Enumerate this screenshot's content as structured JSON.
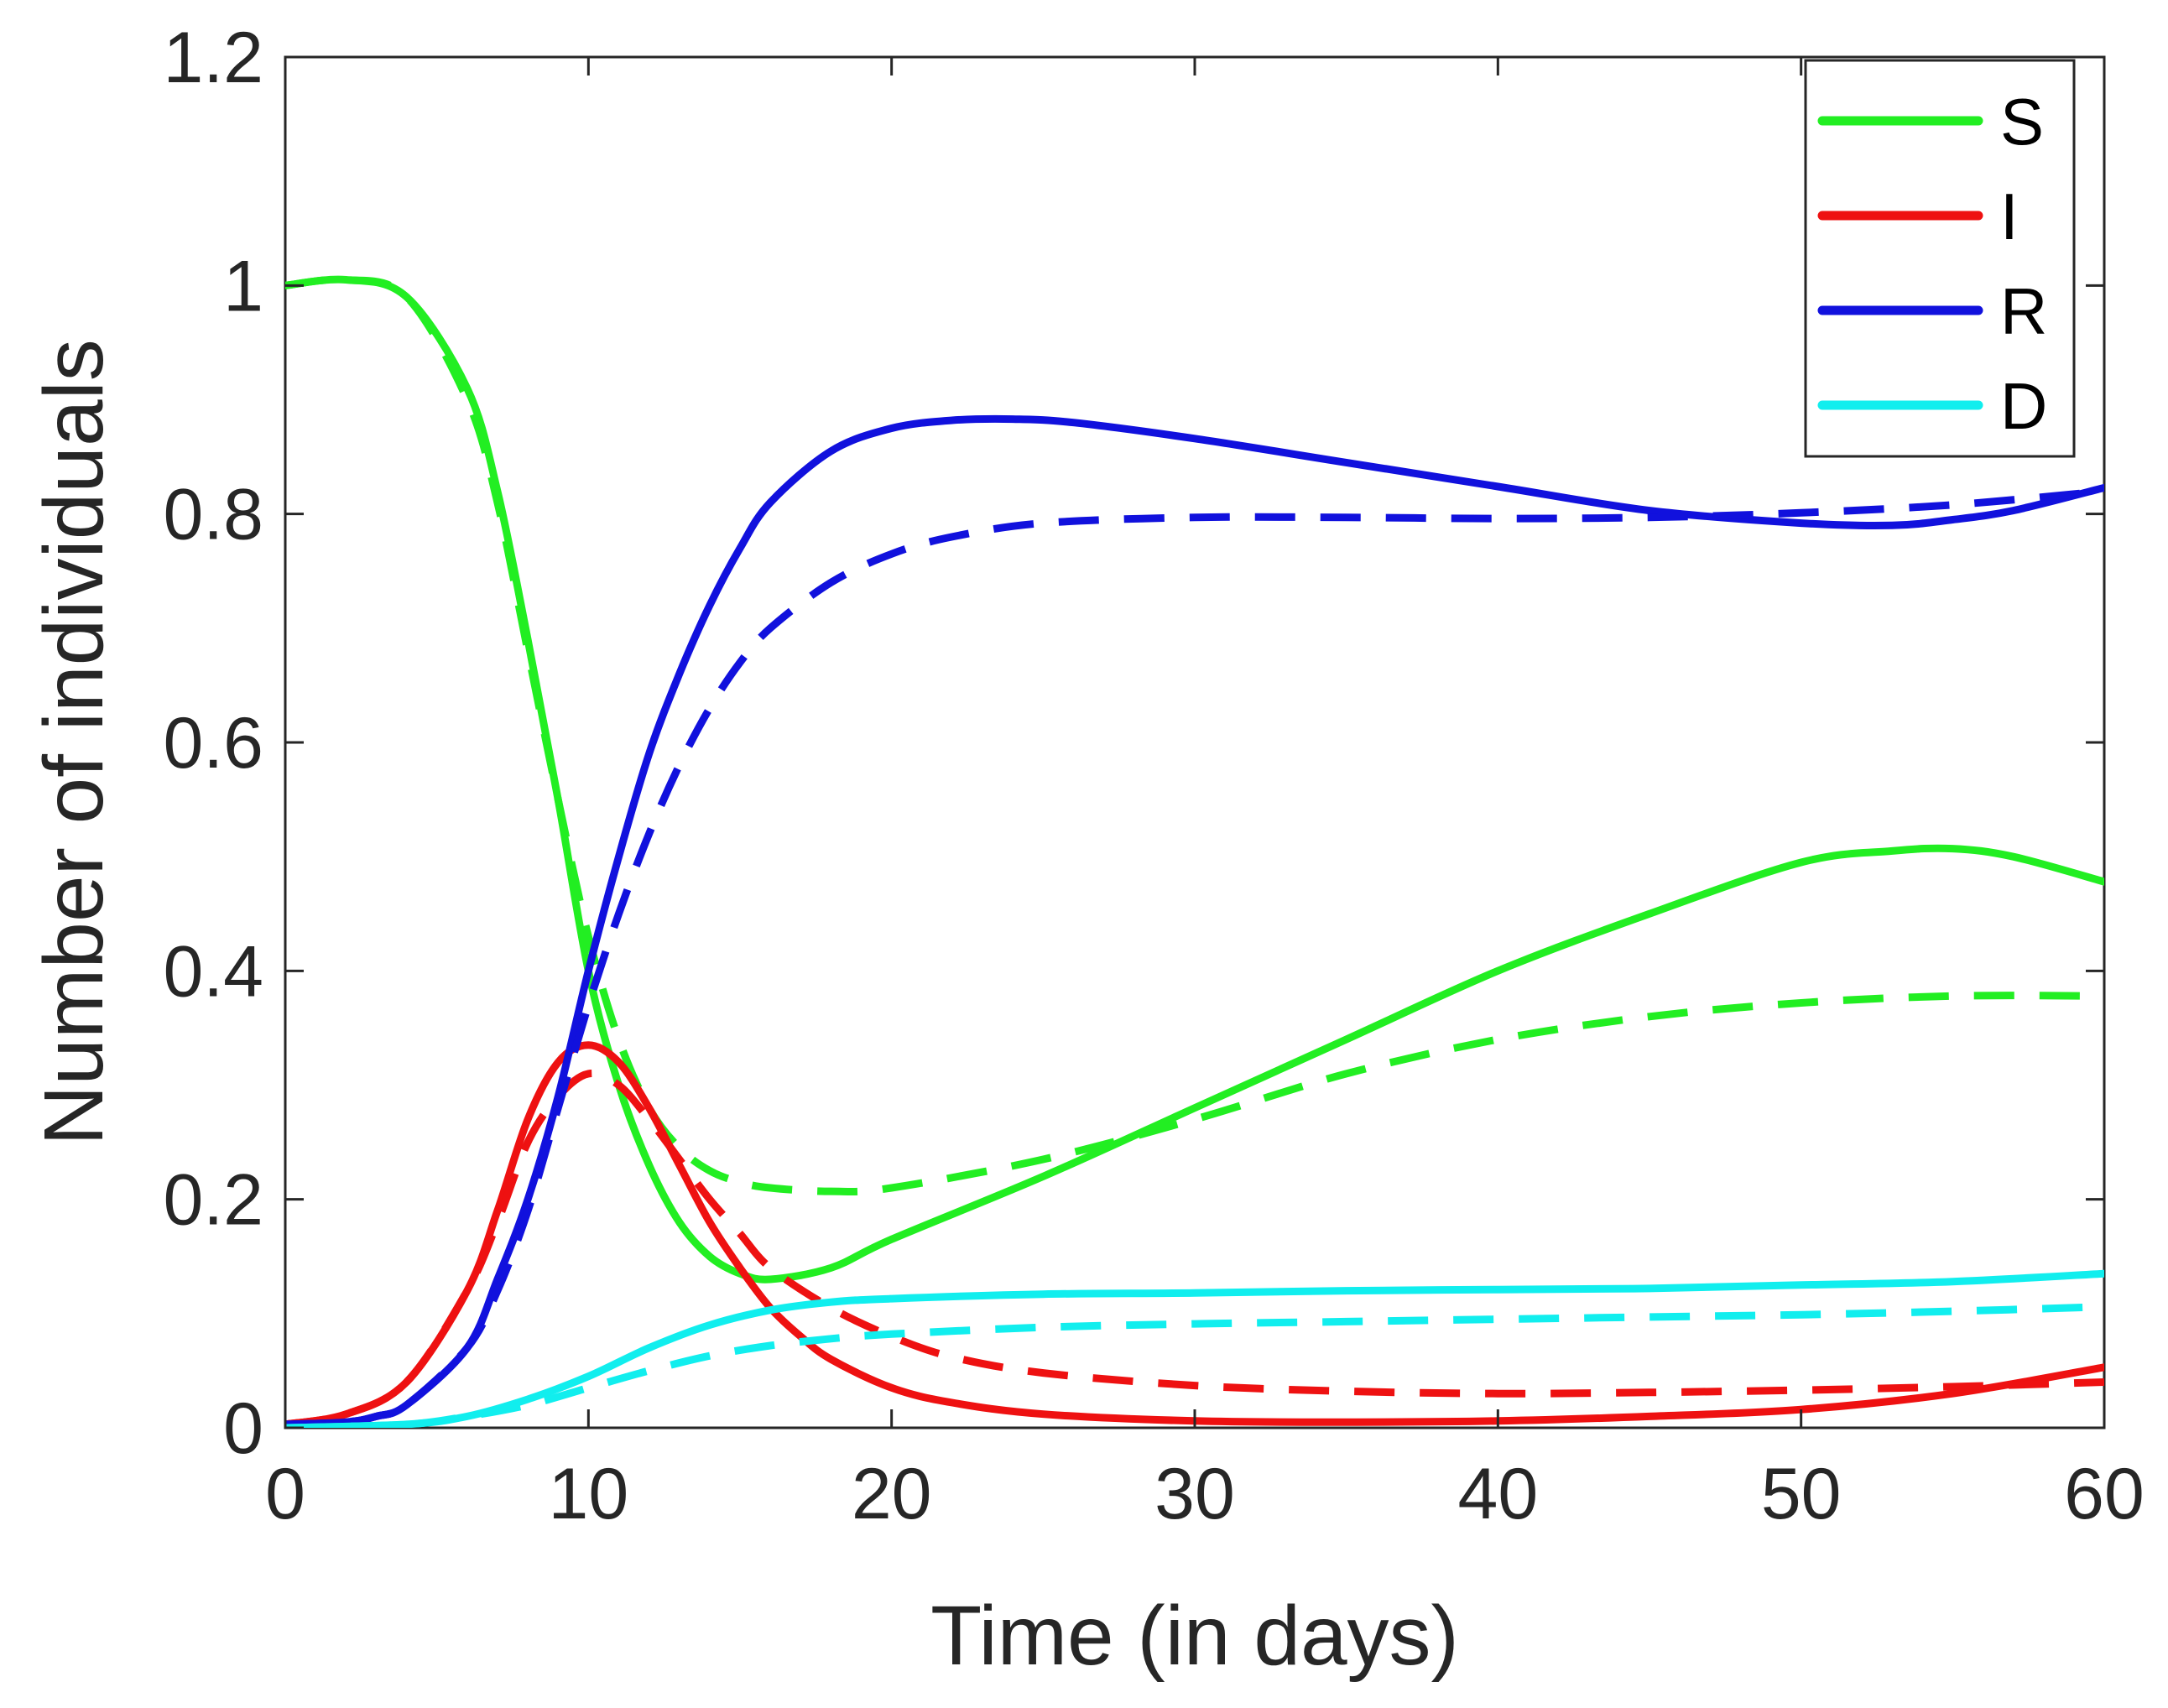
{
  "chart_data": {
    "type": "line",
    "title": "",
    "xlabel": "Time (in days)",
    "ylabel": "Number of individuals",
    "xlim": [
      0,
      60
    ],
    "ylim": [
      0,
      1.2
    ],
    "xticks": [
      0,
      10,
      20,
      30,
      40,
      50,
      60
    ],
    "yticks": [
      0,
      0.2,
      0.4,
      0.6,
      0.8,
      1,
      1.2
    ],
    "xtick_labels": [
      "0",
      "10",
      "20",
      "30",
      "40",
      "50",
      "60"
    ],
    "ytick_labels": [
      "0",
      "0.2",
      "0.4",
      "0.6",
      "0.8",
      "1",
      "1.2"
    ],
    "grid": false,
    "legend_position": "top-right",
    "legend": [
      {
        "label": "S",
        "color": "#22ee22"
      },
      {
        "label": "I",
        "color": "#ee1111"
      },
      {
        "label": "R",
        "color": "#1111dd"
      },
      {
        "label": "D",
        "color": "#11eeee"
      }
    ],
    "series": [
      {
        "name": "S",
        "style": "solid",
        "color": "#22ee22",
        "x": [
          0,
          2,
          4,
          6,
          7,
          8,
          9,
          10,
          11,
          12,
          13,
          14,
          15,
          16,
          18,
          20,
          25,
          30,
          35,
          40,
          45,
          50,
          53,
          55,
          57,
          60
        ],
        "y": [
          1.0,
          1.005,
          0.99,
          0.91,
          0.82,
          0.69,
          0.55,
          0.4,
          0.3,
          0.23,
          0.18,
          0.15,
          0.135,
          0.13,
          0.14,
          0.165,
          0.22,
          0.28,
          0.34,
          0.4,
          0.45,
          0.495,
          0.505,
          0.507,
          0.5,
          0.478
        ]
      },
      {
        "name": "S (dashed)",
        "style": "dashed",
        "color": "#22ee22",
        "x": [
          0,
          2,
          4,
          6,
          7,
          8,
          9,
          10,
          11,
          12,
          13,
          14,
          15,
          16,
          18,
          20,
          25,
          30,
          35,
          40,
          45,
          50,
          55,
          60
        ],
        "y": [
          1.0,
          1.005,
          0.99,
          0.9,
          0.81,
          0.68,
          0.55,
          0.43,
          0.34,
          0.28,
          0.245,
          0.225,
          0.215,
          0.21,
          0.207,
          0.21,
          0.235,
          0.27,
          0.31,
          0.34,
          0.36,
          0.372,
          0.378,
          0.378
        ]
      },
      {
        "name": "I",
        "style": "solid",
        "color": "#ee1111",
        "x": [
          0,
          2,
          4,
          6,
          7,
          8,
          9,
          10,
          11,
          12,
          13,
          14,
          15,
          16,
          17,
          18,
          20,
          22,
          25,
          30,
          35,
          40,
          45,
          50,
          55,
          60
        ],
        "y": [
          0.003,
          0.012,
          0.04,
          0.12,
          0.19,
          0.27,
          0.32,
          0.335,
          0.32,
          0.28,
          0.23,
          0.18,
          0.14,
          0.105,
          0.08,
          0.06,
          0.035,
          0.022,
          0.012,
          0.006,
          0.005,
          0.006,
          0.01,
          0.016,
          0.03,
          0.053
        ]
      },
      {
        "name": "I (dashed)",
        "style": "dashed",
        "color": "#ee1111",
        "x": [
          0,
          2,
          4,
          6,
          7,
          8,
          9,
          10,
          11,
          12,
          13,
          14,
          15,
          16,
          18,
          20,
          22,
          25,
          30,
          35,
          40,
          45,
          50,
          55,
          60
        ],
        "y": [
          0.003,
          0.012,
          0.04,
          0.12,
          0.18,
          0.25,
          0.29,
          0.31,
          0.3,
          0.27,
          0.235,
          0.2,
          0.17,
          0.14,
          0.105,
          0.08,
          0.062,
          0.048,
          0.037,
          0.032,
          0.03,
          0.031,
          0.033,
          0.036,
          0.04
        ]
      },
      {
        "name": "R",
        "style": "solid",
        "color": "#1111dd",
        "x": [
          0,
          2,
          3,
          4,
          6,
          7,
          8,
          9,
          10,
          11,
          12,
          13,
          14,
          15,
          16,
          18,
          20,
          22,
          24,
          26,
          30,
          35,
          40,
          45,
          50,
          53,
          55,
          57,
          60
        ],
        "y": [
          0.003,
          0.005,
          0.01,
          0.02,
          0.07,
          0.13,
          0.2,
          0.29,
          0.4,
          0.5,
          0.59,
          0.66,
          0.72,
          0.77,
          0.81,
          0.855,
          0.875,
          0.882,
          0.883,
          0.88,
          0.866,
          0.845,
          0.824,
          0.803,
          0.792,
          0.79,
          0.795,
          0.803,
          0.823
        ]
      },
      {
        "name": "R (dashed)",
        "style": "dashed",
        "color": "#1111dd",
        "x": [
          0,
          2,
          3,
          4,
          6,
          7,
          8,
          9,
          10,
          11,
          12,
          13,
          14,
          15,
          16,
          18,
          20,
          22,
          25,
          30,
          35,
          40,
          45,
          50,
          55,
          60
        ],
        "y": [
          0.003,
          0.005,
          0.01,
          0.02,
          0.07,
          0.12,
          0.19,
          0.28,
          0.37,
          0.45,
          0.52,
          0.58,
          0.63,
          0.67,
          0.7,
          0.74,
          0.765,
          0.78,
          0.792,
          0.797,
          0.797,
          0.796,
          0.797,
          0.801,
          0.808,
          0.82
        ]
      },
      {
        "name": "D",
        "style": "solid",
        "color": "#11eeee",
        "x": [
          0,
          4,
          6,
          8,
          10,
          12,
          14,
          16,
          18,
          20,
          25,
          30,
          35,
          40,
          45,
          50,
          55,
          60
        ],
        "y": [
          0.0,
          0.003,
          0.01,
          0.025,
          0.045,
          0.07,
          0.09,
          0.103,
          0.11,
          0.113,
          0.117,
          0.118,
          0.12,
          0.121,
          0.122,
          0.125,
          0.128,
          0.135
        ]
      },
      {
        "name": "D (dashed)",
        "style": "dashed",
        "color": "#11eeee",
        "x": [
          0,
          4,
          6,
          8,
          10,
          12,
          14,
          16,
          18,
          20,
          25,
          30,
          35,
          40,
          45,
          50,
          55,
          60
        ],
        "y": [
          0.0,
          0.003,
          0.01,
          0.02,
          0.035,
          0.05,
          0.063,
          0.072,
          0.078,
          0.082,
          0.088,
          0.091,
          0.093,
          0.095,
          0.097,
          0.099,
          0.102,
          0.106
        ]
      }
    ]
  }
}
